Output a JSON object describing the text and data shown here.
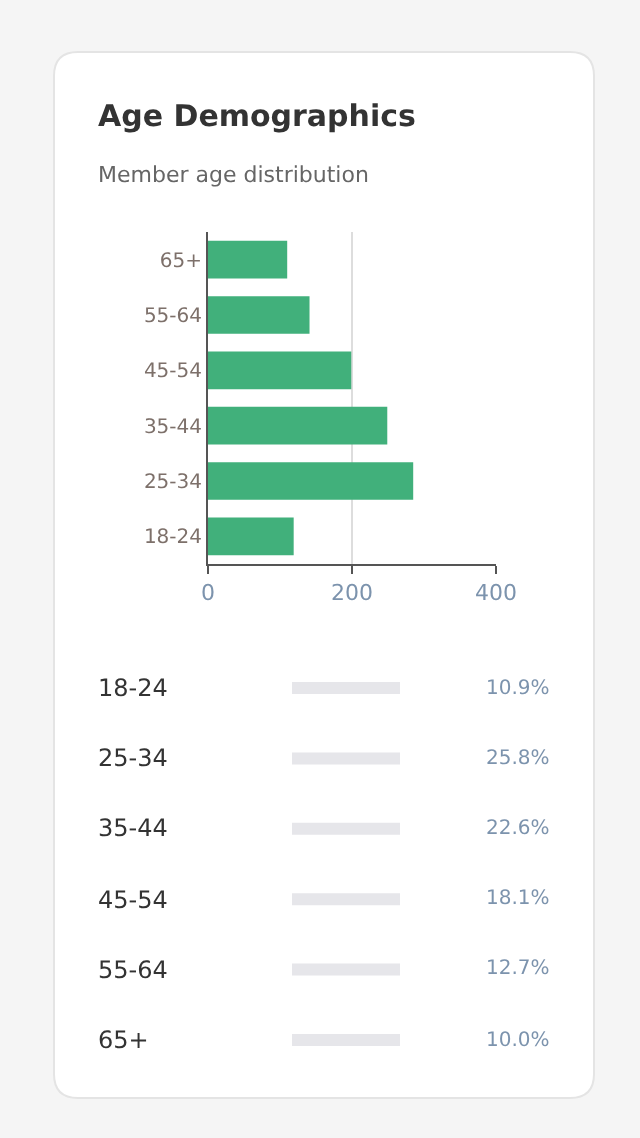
{
  "chart_data": [
    {
      "type": "bar",
      "title": "Age Demographics",
      "subtitle": "Member age distribution",
      "orientation": "horizontal",
      "categories": [
        "65+",
        "55-64",
        "45-54",
        "35-44",
        "25-34",
        "18-24"
      ],
      "values": [
        110,
        141,
        199,
        249,
        285,
        119
      ],
      "color": "#41b07b",
      "xlim": [
        0,
        400
      ],
      "xticks": [
        0,
        200,
        400
      ],
      "grid": "x"
    },
    {
      "type": "other",
      "categories": [
        "18-24",
        "25-34",
        "35-44",
        "45-54",
        "55-64",
        "65+"
      ],
      "values": [
        10.9,
        25.8,
        22.6,
        18.1,
        12.7,
        10.0
      ],
      "value_labels": [
        "10.9%",
        "25.8%",
        "22.6%",
        "18.1%",
        "12.7%",
        "10.0%"
      ]
    }
  ]
}
